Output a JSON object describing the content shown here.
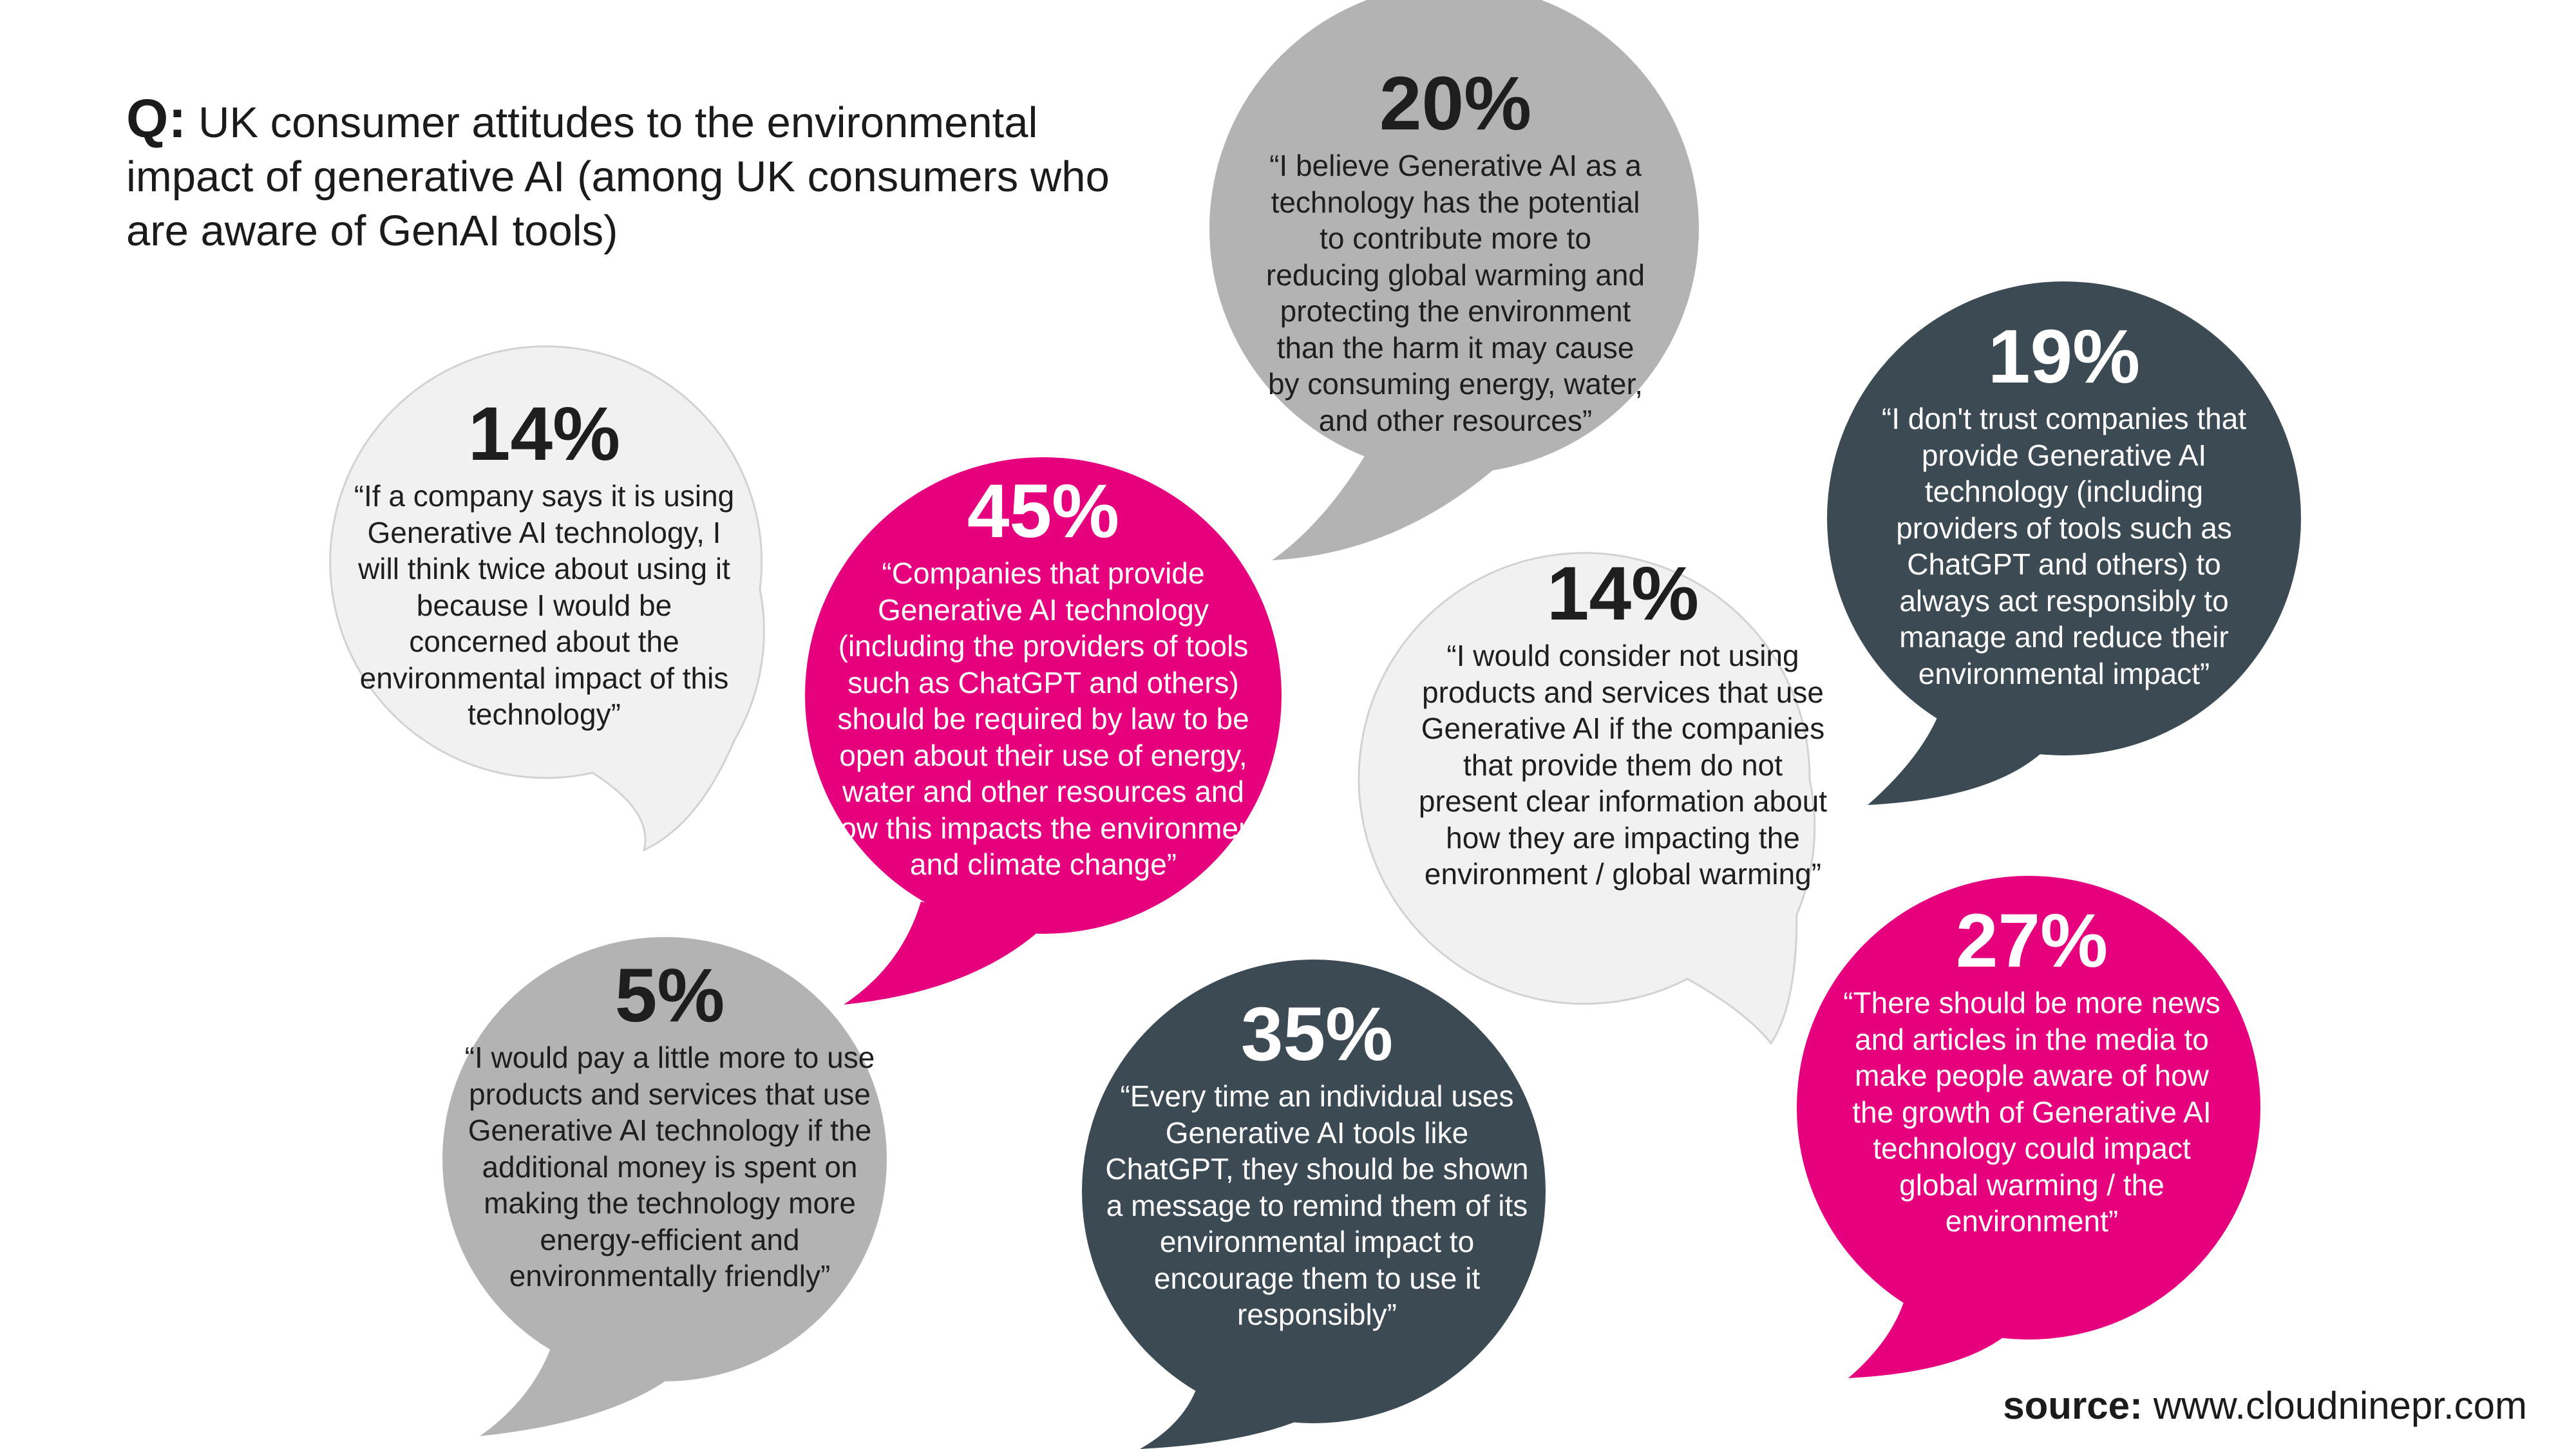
{
  "heading": {
    "prefix": "Q:",
    "text": "UK consumer attitudes to the environmental impact of generative AI (among UK consumers who are aware of GenAI tools)"
  },
  "colors": {
    "grey": "#b3b3b3",
    "light_grey": "#f1f1f1",
    "pink": "#e6007e",
    "slate": "#3c4a54",
    "text_dark": "#1e1e1e",
    "text_light": "#ffffff"
  },
  "bubbles": [
    {
      "id": "b20",
      "percent": "20%",
      "quote": "“I believe Generative AI as a technology has the potential to contribute more to reducing global warming and protecting the environment than the harm it may cause by consuming energy, water, and other resources”",
      "color": "grey"
    },
    {
      "id": "b14a",
      "percent": "14%",
      "quote": "“If a company says it is using Generative AI technology, I will think twice about using it because I would be concerned about the environmental impact of this technology”",
      "color": "light_grey"
    },
    {
      "id": "b45",
      "percent": "45%",
      "quote": "“Companies that provide Generative AI technology (including the providers of tools such as ChatGPT and others) should be required by law to be open about their use of energy, water and other resources and how this impacts the environment and climate change”",
      "color": "pink"
    },
    {
      "id": "b19",
      "percent": "19%",
      "quote": "“I don't trust companies that provide Generative AI technology (including providers of tools such as ChatGPT and others) to always act responsibly to manage and reduce their environmental impact”",
      "color": "slate"
    },
    {
      "id": "b14b",
      "percent": "14%",
      "quote": "“I would consider not using products and services that use Generative AI if the companies that provide them do not present clear information about how they are impacting the environment / global warming”",
      "color": "light_grey"
    },
    {
      "id": "b5",
      "percent": "5%",
      "quote": "“I would pay a little more to use products and services that use Generative AI technology if the additional money is spent on making the technology more energy-efficient and environmentally friendly”",
      "color": "grey"
    },
    {
      "id": "b35",
      "percent": "35%",
      "quote": "“Every time an individual uses Generative AI tools like ChatGPT, they should be shown a message to remind them of its environmental impact to encourage them to use it responsibly”",
      "color": "slate"
    },
    {
      "id": "b27",
      "percent": "27%",
      "quote": "“There should be more news and articles in the media to make people aware of how the growth of Generative AI technology could impact global warming / the environment”",
      "color": "pink"
    }
  ],
  "source": {
    "label": "source:",
    "url": "www.cloudninepr.com"
  }
}
